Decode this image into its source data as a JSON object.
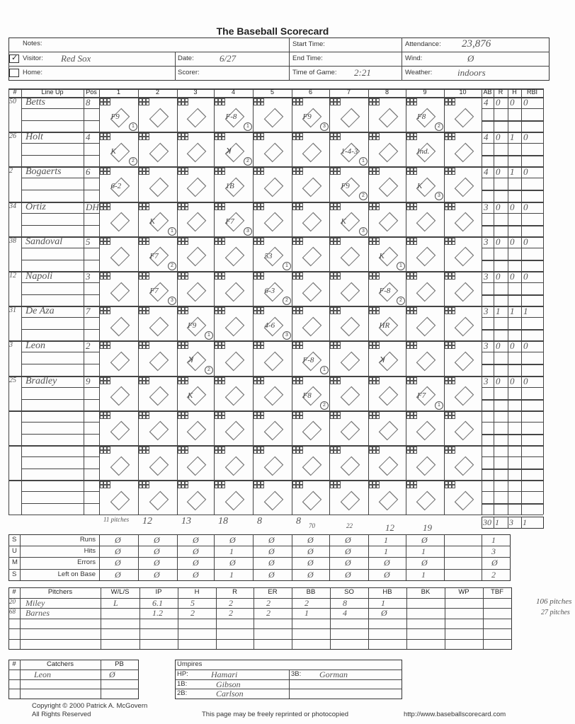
{
  "title": "The Baseball Scorecard",
  "header": {
    "notes_label": "Notes:",
    "visitor_label": "Visitor:",
    "visitor_value": "Red Sox",
    "visitor_checked": true,
    "home_label": "Home:",
    "home_value": "",
    "date_label": "Date:",
    "date_value": "6/27",
    "scorer_label": "Scorer:",
    "scorer_value": "",
    "start_label": "Start Time:",
    "start_value": "",
    "end_label": "End Time:",
    "end_value": "",
    "tog_label": "Time of Game:",
    "tog_value": "2:21",
    "attendance_label": "Attendance:",
    "attendance_value": "23,876",
    "wind_label": "Wind:",
    "wind_value": "Ø",
    "weather_label": "Weather:",
    "weather_value": "indoors"
  },
  "lineup_headers": [
    "#",
    "Line Up",
    "Pos",
    "1",
    "2",
    "3",
    "4",
    "5",
    "6",
    "7",
    "8",
    "9",
    "10",
    "AB",
    "R",
    "H",
    "RBI"
  ],
  "lineup": [
    {
      "num": "50",
      "name": "Betts",
      "pos": "8",
      "ab": "4",
      "r": "0",
      "h": "0",
      "rbi": "0",
      "plays": [
        {
          "inn": 1,
          "res": "F9",
          "out": "1"
        },
        {
          "inn": 4,
          "res": "F-8",
          "out": "1"
        },
        {
          "inn": 6,
          "res": "F9",
          "out": "3"
        },
        {
          "inn": 9,
          "res": "F8",
          "out": "2"
        }
      ]
    },
    {
      "num": "26",
      "name": "Holt",
      "pos": "4",
      "ab": "4",
      "r": "0",
      "h": "1",
      "rbi": "0",
      "plays": [
        {
          "inn": 1,
          "res": "K",
          "out": "2"
        },
        {
          "inn": 4,
          "res": "ꓘ",
          "out": "2"
        },
        {
          "inn": 7,
          "res": "1-4-3",
          "out": "1"
        },
        {
          "inn": 9,
          "res": "Ind.",
          "out": ""
        }
      ]
    },
    {
      "num": "2",
      "name": "Bogaerts",
      "pos": "6",
      "ab": "4",
      "r": "0",
      "h": "1",
      "rbi": "0",
      "plays": [
        {
          "inn": 1,
          "res": "6-2",
          "out": ""
        },
        {
          "inn": 4,
          "res": "1B",
          "out": ""
        },
        {
          "inn": 7,
          "res": "F9",
          "out": "2"
        },
        {
          "inn": 9,
          "res": "K",
          "out": "3"
        }
      ]
    },
    {
      "num": "34",
      "name": "Ortiz",
      "pos": "DH",
      "ab": "3",
      "r": "0",
      "h": "0",
      "rbi": "0",
      "plays": [
        {
          "inn": 2,
          "res": "K",
          "out": "1"
        },
        {
          "inn": 4,
          "res": "F7",
          "out": "3"
        },
        {
          "inn": 7,
          "res": "K",
          "out": "3"
        }
      ]
    },
    {
      "num": "38",
      "name": "Sandoval",
      "pos": "5",
      "ab": "3",
      "r": "0",
      "h": "0",
      "rbi": "0",
      "plays": [
        {
          "inn": 2,
          "res": "F7",
          "out": "2"
        },
        {
          "inn": 5,
          "res": "53",
          "out": "1"
        },
        {
          "inn": 8,
          "res": "K",
          "out": "1"
        }
      ]
    },
    {
      "num": "12",
      "name": "Napoli",
      "pos": "3",
      "ab": "3",
      "r": "0",
      "h": "0",
      "rbi": "0",
      "plays": [
        {
          "inn": 2,
          "res": "F7",
          "out": "3"
        },
        {
          "inn": 5,
          "res": "6-3",
          "out": "2"
        },
        {
          "inn": 8,
          "res": "F-8",
          "out": "2"
        }
      ]
    },
    {
      "num": "31",
      "name": "De Aza",
      "pos": "7",
      "ab": "3",
      "r": "1",
      "h": "1",
      "rbi": "1",
      "plays": [
        {
          "inn": 3,
          "res": "F9",
          "out": "1"
        },
        {
          "inn": 5,
          "res": "4-6",
          "out": "3"
        },
        {
          "inn": 8,
          "res": "HR",
          "out": ""
        }
      ]
    },
    {
      "num": "3",
      "name": "Leon",
      "pos": "2",
      "ab": "3",
      "r": "0",
      "h": "0",
      "rbi": "0",
      "plays": [
        {
          "inn": 3,
          "res": "ꓘ",
          "out": "2"
        },
        {
          "inn": 6,
          "res": "F-8",
          "out": "1"
        },
        {
          "inn": 8,
          "res": "ꓘ",
          "out": ""
        }
      ]
    },
    {
      "num": "25",
      "name": "Bradley",
      "pos": "9",
      "ab": "3",
      "r": "0",
      "h": "0",
      "rbi": "0",
      "plays": [
        {
          "inn": 3,
          "res": "K",
          "out": ""
        },
        {
          "inn": 6,
          "res": "F8",
          "out": "2"
        },
        {
          "inn": 9,
          "res": "F7",
          "out": "1"
        }
      ]
    },
    {
      "num": "",
      "name": "",
      "pos": "",
      "ab": "",
      "r": "",
      "h": "",
      "rbi": "",
      "plays": []
    },
    {
      "num": "",
      "name": "",
      "pos": "",
      "ab": "",
      "r": "",
      "h": "",
      "rbi": "",
      "plays": []
    },
    {
      "num": "",
      "name": "",
      "pos": "",
      "ab": "",
      "r": "",
      "h": "",
      "rbi": "",
      "plays": []
    }
  ],
  "pitch_counts": [
    "11 pitches",
    "12",
    "13",
    "18",
    "8",
    "8",
    "",
    "",
    "",
    ""
  ],
  "pitch_counts_2": [
    "",
    "",
    "",
    "",
    "",
    "70",
    "22",
    "12",
    "19",
    ""
  ],
  "lineup_totals": {
    "ab": "30",
    "r": "1",
    "h": "3",
    "rbi": "1"
  },
  "summary": {
    "side_letters": [
      "S",
      "U",
      "M",
      "S"
    ],
    "rows": [
      {
        "label": "Runs",
        "values": [
          "Ø",
          "Ø",
          "Ø",
          "Ø",
          "Ø",
          "Ø",
          "Ø",
          "1",
          "Ø",
          ""
        ],
        "total": "1"
      },
      {
        "label": "Hits",
        "values": [
          "Ø",
          "Ø",
          "Ø",
          "1",
          "Ø",
          "Ø",
          "Ø",
          "1",
          "1",
          ""
        ],
        "total": "3"
      },
      {
        "label": "Errors",
        "values": [
          "Ø",
          "Ø",
          "Ø",
          "Ø",
          "Ø",
          "Ø",
          "Ø",
          "Ø",
          "Ø",
          ""
        ],
        "total": "Ø"
      },
      {
        "label": "Left on Base",
        "values": [
          "Ø",
          "Ø",
          "Ø",
          "1",
          "Ø",
          "Ø",
          "Ø",
          "Ø",
          "1",
          ""
        ],
        "total": "2"
      }
    ]
  },
  "pitchers": {
    "headers": [
      "#",
      "Pitchers",
      "W/L/S",
      "IP",
      "H",
      "R",
      "ER",
      "BB",
      "SO",
      "HB",
      "BK",
      "WP",
      "TBF"
    ],
    "rows": [
      [
        "20",
        "Miley",
        "L",
        "6.1",
        "5",
        "2",
        "2",
        "2",
        "8",
        "1",
        "",
        "",
        ""
      ],
      [
        "68",
        "Barnes",
        "",
        "1.2",
        "2",
        "2",
        "2",
        "1",
        "4",
        "Ø",
        "",
        "",
        ""
      ],
      [
        "",
        "",
        "",
        "",
        "",
        "",
        "",
        "",
        "",
        "",
        "",
        "",
        ""
      ],
      [
        "",
        "",
        "",
        "",
        "",
        "",
        "",
        "",
        "",
        "",
        "",
        "",
        ""
      ],
      [
        "",
        "",
        "",
        "",
        "",
        "",
        "",
        "",
        "",
        "",
        "",
        "",
        ""
      ]
    ],
    "side_notes": [
      "106 pitches",
      "27 pitches"
    ]
  },
  "catchers": {
    "headers": [
      "#",
      "Catchers",
      "PB"
    ],
    "rows": [
      [
        "",
        "Leon",
        "Ø"
      ],
      [
        "",
        "",
        ""
      ],
      [
        "",
        "",
        ""
      ]
    ]
  },
  "umpires": {
    "title": "Umpires",
    "hp_label": "HP:",
    "hp": "Hamari",
    "b1_label": "1B:",
    "b1": "Gibson",
    "b2_label": "2B:",
    "b2": "Carlson",
    "b3_label": "3B:",
    "b3": "Gorman"
  },
  "footer": {
    "copyright": "Copyright © 2000 Patrick A. McGovern",
    "rights": "All Rights Reserved",
    "reprint": "This page may be freely reprinted or photocopied",
    "url": "http://www.baseballscorecard.com"
  }
}
